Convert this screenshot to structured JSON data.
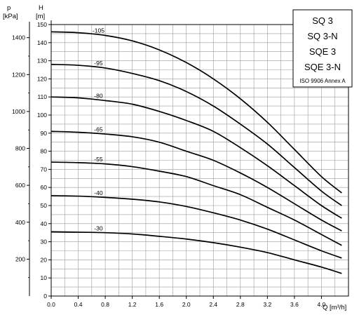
{
  "chart_data": {
    "type": "line",
    "title_lines": [
      "SQ 3",
      "SQ 3-N",
      "SQE 3",
      "SQE 3-N"
    ],
    "subtitle": "ISO 9906 Annex A",
    "xlabel": "Q [m³/h]",
    "ylabel_left_symbol": "p",
    "ylabel_left_unit": "[kPa]",
    "ylabel_right_symbol": "H",
    "ylabel_right_unit": "[m]",
    "xlim": [
      0,
      4.4
    ],
    "ylim": [
      0,
      150
    ],
    "grid": true,
    "x_ticks": [
      "0.0",
      "0.4",
      "0.8",
      "1.2",
      "1.6",
      "2.0",
      "2.4",
      "2.8",
      "3.2",
      "3.6",
      "4.0"
    ],
    "h_ticks": [
      "0",
      "10",
      "20",
      "30",
      "40",
      "50",
      "60",
      "70",
      "80",
      "90",
      "100",
      "110",
      "120",
      "130",
      "140",
      "150"
    ],
    "p_ticks": [
      "200",
      "400",
      "600",
      "800",
      "1000",
      "1200",
      "1400"
    ],
    "series": [
      {
        "name": "-105",
        "x": [
          0,
          0.4,
          0.8,
          1.2,
          1.6,
          2.0,
          2.4,
          2.8,
          3.2,
          3.6,
          4.0,
          4.3
        ],
        "values": [
          146,
          145.5,
          144,
          141,
          136,
          129,
          120,
          109,
          96,
          81,
          66,
          57
        ]
      },
      {
        "name": "-95",
        "x": [
          0,
          0.4,
          0.8,
          1.2,
          1.6,
          2.0,
          2.4,
          2.8,
          3.2,
          3.6,
          4.0,
          4.3
        ],
        "values": [
          128,
          127.5,
          126,
          123,
          119,
          113,
          105,
          95,
          84,
          71,
          58,
          50
        ]
      },
      {
        "name": "-80",
        "x": [
          0,
          0.4,
          0.8,
          1.2,
          1.6,
          2.0,
          2.4,
          2.8,
          3.2,
          3.6,
          4.0,
          4.3
        ],
        "values": [
          110,
          109.5,
          108,
          106,
          102,
          97,
          91,
          82,
          72,
          61,
          50,
          43
        ]
      },
      {
        "name": "-65",
        "x": [
          0,
          0.4,
          0.8,
          1.2,
          1.6,
          2.0,
          2.4,
          2.8,
          3.2,
          3.6,
          4.0,
          4.3
        ],
        "values": [
          91,
          90.5,
          89.5,
          88,
          85,
          80,
          75,
          68,
          60,
          51,
          42,
          36
        ]
      },
      {
        "name": "-55",
        "x": [
          0,
          0.4,
          0.8,
          1.2,
          1.6,
          2.0,
          2.4,
          2.8,
          3.2,
          3.6,
          4.0,
          4.3
        ],
        "values": [
          74,
          73.7,
          73,
          71.5,
          69,
          66,
          61,
          56,
          49,
          42,
          34,
          28
        ]
      },
      {
        "name": "-40",
        "x": [
          0,
          0.4,
          0.8,
          1.2,
          1.6,
          2.0,
          2.4,
          2.8,
          3.2,
          3.6,
          4.0,
          4.3
        ],
        "values": [
          55.5,
          55.2,
          54.5,
          53.5,
          52,
          49.5,
          46,
          42,
          37,
          31,
          25,
          21
        ]
      },
      {
        "name": "-30",
        "x": [
          0,
          0.4,
          0.8,
          1.2,
          1.6,
          2.0,
          2.4,
          2.8,
          3.2,
          3.6,
          4.0,
          4.3
        ],
        "values": [
          35.5,
          35.3,
          35,
          34.3,
          33,
          31.5,
          29.5,
          27,
          24,
          20,
          16,
          12.5
        ]
      }
    ]
  }
}
